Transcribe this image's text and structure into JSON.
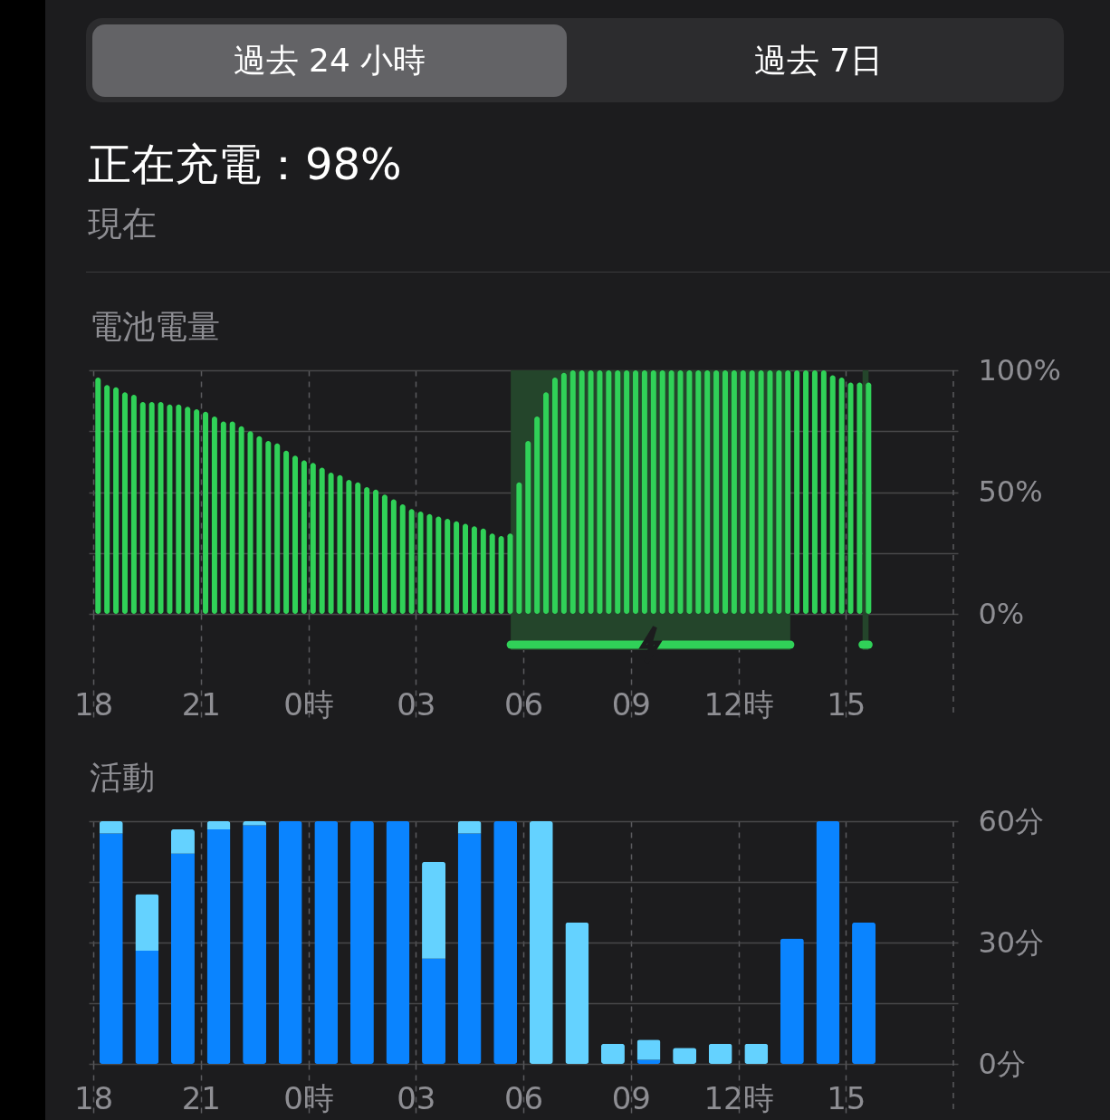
{
  "chart_data": [
    {
      "type": "bar",
      "title": "電池電量",
      "annotations": [
        "過去 24 小時",
        "過去 7日",
        "正在充電：98%",
        "現在"
      ],
      "x": [
        "--01-01T18:08",
        "--01-01T18:23",
        "--01-01T18:38",
        "--01-01T18:53",
        "--01-01T19:08",
        "--01-01T19:23",
        "--01-01T19:38",
        "--01-01T19:53",
        "--01-01T20:08",
        "--01-01T20:23",
        "--01-01T20:38",
        "--01-01T20:53",
        "--01-01T21:08",
        "--01-01T21:23",
        "--01-01T21:38",
        "--01-01T21:53",
        "--01-01T22:08",
        "--01-01T22:23",
        "--01-01T22:38",
        "--01-01T22:53",
        "--01-01T23:08",
        "--01-01T23:23",
        "--01-01T23:38",
        "--01-01T23:53",
        "--01-02T00:08",
        "--01-02T00:23",
        "--01-02T00:38",
        "--01-02T00:53",
        "--01-02T01:08",
        "--01-02T01:23",
        "--01-02T01:38",
        "--01-02T01:53",
        "--01-02T02:08",
        "--01-02T02:23",
        "--01-02T02:38",
        "--01-02T02:53",
        "--01-02T03:08",
        "--01-02T03:23",
        "--01-02T03:38",
        "--01-02T03:53",
        "--01-02T04:08",
        "--01-02T04:23",
        "--01-02T04:38",
        "--01-02T04:53",
        "--01-02T05:08",
        "--01-02T05:23",
        "--01-02T05:38",
        "--01-02T05:53",
        "--01-02T06:08",
        "--01-02T06:23",
        "--01-02T06:38",
        "--01-02T06:53",
        "--01-02T07:08",
        "--01-02T07:23",
        "--01-02T07:38",
        "--01-02T07:53",
        "--01-02T08:08",
        "--01-02T08:23",
        "--01-02T08:38",
        "--01-02T08:53",
        "--01-02T09:08",
        "--01-02T09:23",
        "--01-02T09:38",
        "--01-02T09:53",
        "--01-02T10:08",
        "--01-02T10:23",
        "--01-02T10:38",
        "--01-02T10:53",
        "--01-02T11:08",
        "--01-02T11:23",
        "--01-02T11:38",
        "--01-02T11:53",
        "--01-02T12:08",
        "--01-02T12:23",
        "--01-02T12:38",
        "--01-02T12:53",
        "--01-02T13:08",
        "--01-02T13:23",
        "--01-02T13:38",
        "--01-02T13:53",
        "--01-02T14:08",
        "--01-02T14:23",
        "--01-02T14:38",
        "--01-02T14:53",
        "--01-02T15:08",
        "--01-02T15:23",
        "--01-02T15:38"
      ],
      "series": [
        {
          "color": "#30d158",
          "values": [
            97,
            94,
            93,
            91,
            90,
            87,
            87,
            87,
            86,
            86,
            85,
            84,
            83,
            81,
            79,
            79,
            77,
            75,
            73,
            71,
            70,
            67,
            65,
            63,
            62,
            60,
            58,
            57,
            55,
            54,
            52,
            51,
            49,
            47,
            45,
            43,
            42,
            41,
            40,
            39,
            38,
            37,
            36,
            35,
            33,
            32,
            33,
            54,
            71,
            81,
            91,
            97,
            99,
            100,
            100,
            100,
            100,
            100,
            100,
            100,
            100,
            100,
            100,
            100,
            100,
            100,
            100,
            100,
            100,
            100,
            100,
            100,
            100,
            100,
            100,
            100,
            100,
            100,
            100,
            100,
            100,
            100,
            98,
            97,
            95,
            95,
            95
          ]
        }
      ],
      "xlim": [
        "--01-01T18:00",
        "--01-02T18:00"
      ],
      "xticks": [
        {
          "value": "--01-01T18:00",
          "label": "18"
        },
        {
          "value": "--01-01T21:00",
          "label": "21"
        },
        {
          "value": "--01-02T00:00",
          "label": "0時"
        },
        {
          "value": "--01-02T03:00",
          "label": "03"
        },
        {
          "value": "--01-02T06:00",
          "label": "06"
        },
        {
          "value": "--01-02T09:00",
          "label": "09"
        },
        {
          "value": "--01-02T12:00",
          "label": "12時"
        },
        {
          "value": "--01-02T15:00",
          "label": "15"
        }
      ],
      "ylim": [
        0,
        100
      ],
      "yticks": [
        {
          "value": 0,
          "label": "0%"
        },
        {
          "value": 25,
          "label": null
        },
        {
          "value": 50,
          "label": "50%"
        },
        {
          "value": 75,
          "label": null
        },
        {
          "value": 100,
          "label": "100%"
        }
      ],
      "bands": [
        {
          "axis": "x",
          "from": "--01-02T05:39",
          "to": "--01-02T13:27",
          "color": "#24452b"
        },
        {
          "axis": "x",
          "from": "--01-02T15:28",
          "to": "--01-02T15:38",
          "color": "#24452b"
        }
      ],
      "grid": true
    },
    {
      "type": "bar",
      "title": "活動",
      "stacked": true,
      "x": [
        "--01-01T18:30",
        "--01-01T19:30",
        "--01-01T20:30",
        "--01-01T21:30",
        "--01-01T22:30",
        "--01-01T23:30",
        "--01-02T00:30",
        "--01-02T01:30",
        "--01-02T02:30",
        "--01-02T03:30",
        "--01-02T04:30",
        "--01-02T05:30",
        "--01-02T06:30",
        "--01-02T07:30",
        "--01-02T08:30",
        "--01-02T09:30",
        "--01-02T10:30",
        "--01-02T11:30",
        "--01-02T12:30",
        "--01-02T13:30",
        "--01-02T14:30",
        "--01-02T15:30"
      ],
      "series": [
        {
          "color": "#0a84ff",
          "values": [
            57,
            28,
            52,
            58,
            59,
            60,
            60,
            60,
            60,
            26,
            57,
            60,
            0,
            0,
            0,
            1,
            0,
            0,
            0,
            31,
            60,
            35
          ]
        },
        {
          "color": "#64d2ff",
          "values": [
            3,
            14,
            6,
            2,
            1,
            0,
            0,
            0,
            0,
            24,
            3,
            0,
            60,
            35,
            5,
            5,
            4,
            5,
            5,
            0,
            0,
            0
          ]
        }
      ],
      "xlim": [
        "--01-01T18:00",
        "--01-02T18:00"
      ],
      "xticks": [
        {
          "value": "--01-01T18:00",
          "label": "18"
        },
        {
          "value": "--01-01T21:00",
          "label": "21"
        },
        {
          "value": "--01-02T00:00",
          "label": "0時"
        },
        {
          "value": "--01-02T03:00",
          "label": "03"
        },
        {
          "value": "--01-02T06:00",
          "label": "06"
        },
        {
          "value": "--01-02T09:00",
          "label": "09"
        },
        {
          "value": "--01-02T12:00",
          "label": "12時"
        },
        {
          "value": "--01-02T15:00",
          "label": "15"
        }
      ],
      "ylim": [
        0,
        60
      ],
      "yticks": [
        {
          "value": 0,
          "label": "0分"
        },
        {
          "value": 15,
          "label": null
        },
        {
          "value": 30,
          "label": "30分"
        },
        {
          "value": 45,
          "label": null
        },
        {
          "value": 60,
          "label": "60分"
        }
      ],
      "grid": true
    }
  ]
}
